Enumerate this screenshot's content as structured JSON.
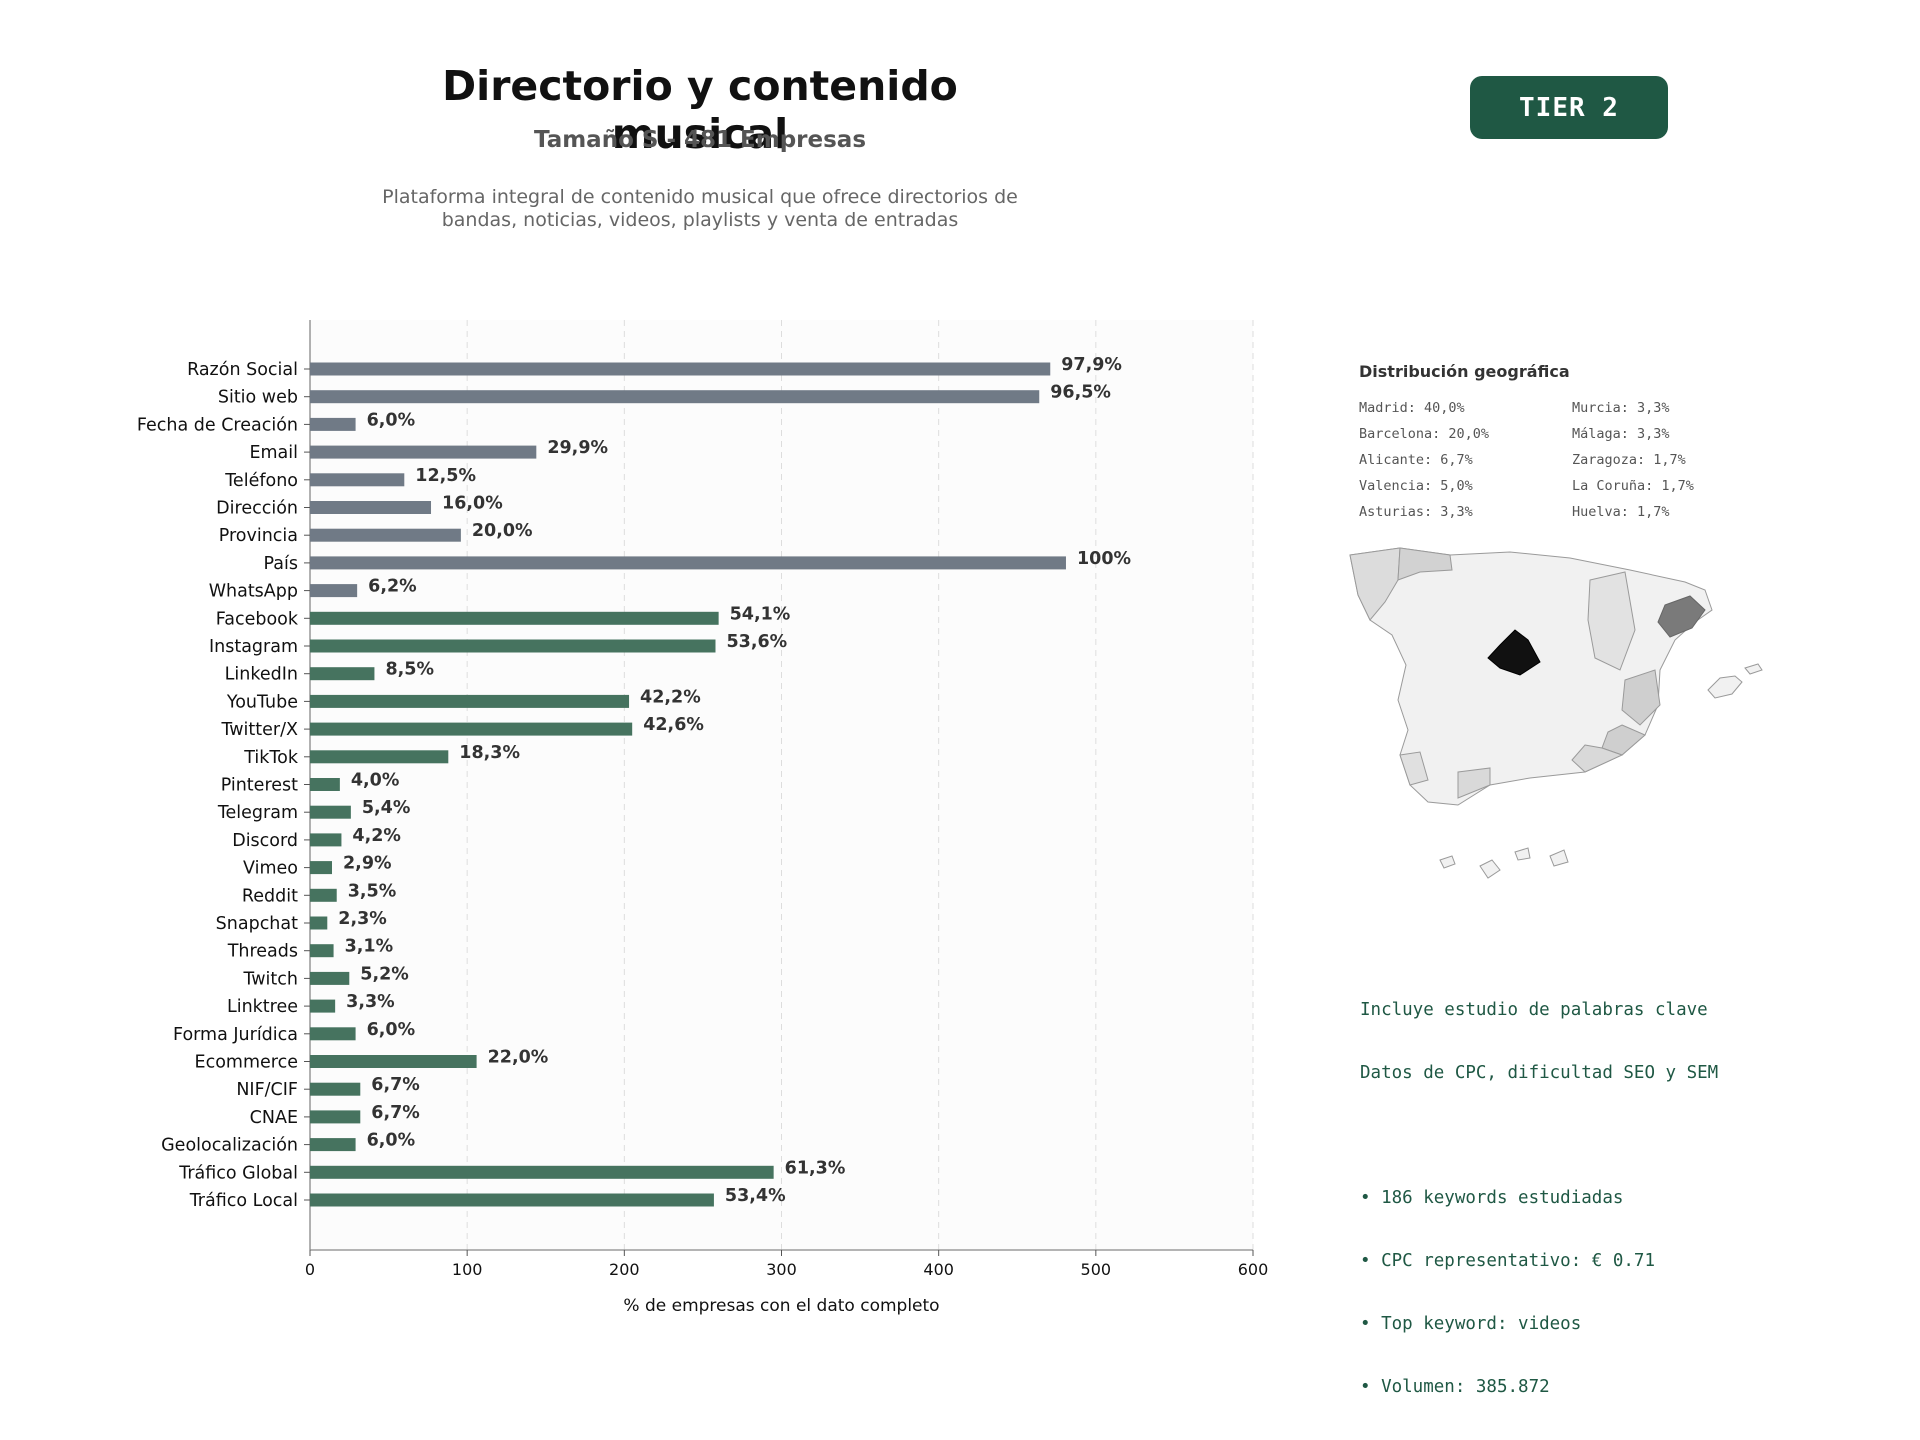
{
  "header": {
    "title": "Directorio y contenido musical",
    "subtitle": "Tamaño S - 481 Empresas",
    "description_line1": "Plataforma integral de contenido musical que ofrece directorios de",
    "description_line2": "bandas, noticias, videos, playlists y venta de entradas",
    "tier_label": "TIER 2"
  },
  "colors": {
    "grey_bar": "#707a86",
    "green_bar": "#46735f",
    "accent": "#1f5844",
    "madrid": "#111111",
    "barcelona": "#7a7a7a",
    "valencia_alicante": "#cfcfcf",
    "other_region": "#f1f1f1"
  },
  "chart_data": {
    "type": "bar",
    "orientation": "horizontal",
    "xlabel": "% de empresas con el dato completo",
    "xlim": [
      0,
      600
    ],
    "xticks": [
      0,
      100,
      200,
      300,
      400,
      500,
      600
    ],
    "grid": "vertical-dashed",
    "categories": [
      "Razón Social",
      "Sitio web",
      "Fecha de Creación",
      "Email",
      "Teléfono",
      "Dirección",
      "Provincia",
      "País",
      "WhatsApp",
      "Facebook",
      "Instagram",
      "LinkedIn",
      "YouTube",
      "Twitter/X",
      "TikTok",
      "Pinterest",
      "Telegram",
      "Discord",
      "Vimeo",
      "Reddit",
      "Snapchat",
      "Threads",
      "Twitch",
      "Linktree",
      "Forma Jurídica",
      "Ecommerce",
      "NIF/CIF",
      "CNAE",
      "Geolocalización",
      "Tráfico Global",
      "Tráfico Local"
    ],
    "values": [
      471,
      464,
      29,
      144,
      60,
      77,
      96,
      481,
      30,
      260,
      258,
      41,
      203,
      205,
      88,
      19,
      26,
      20,
      14,
      17,
      11,
      15,
      25,
      16,
      29,
      106,
      32,
      32,
      29,
      295,
      257
    ],
    "labels": [
      "97,9%",
      "96,5%",
      "6,0%",
      "29,9%",
      "12,5%",
      "16,0%",
      "20,0%",
      "100%",
      "6,2%",
      "54,1%",
      "53,6%",
      "8,5%",
      "42,2%",
      "42,6%",
      "18,3%",
      "4,0%",
      "5,4%",
      "4,2%",
      "2,9%",
      "3,5%",
      "2,3%",
      "3,1%",
      "5,2%",
      "3,3%",
      "6,0%",
      "22,0%",
      "6,7%",
      "6,7%",
      "6,0%",
      "61,3%",
      "53,4%"
    ],
    "bar_color_group": [
      "grey",
      "grey",
      "grey",
      "grey",
      "grey",
      "grey",
      "grey",
      "grey",
      "grey",
      "green",
      "green",
      "green",
      "green",
      "green",
      "green",
      "green",
      "green",
      "green",
      "green",
      "green",
      "green",
      "green",
      "green",
      "green",
      "green",
      "green",
      "green",
      "green",
      "green",
      "green",
      "green"
    ]
  },
  "geo": {
    "title": "Distribución geográfica",
    "left_column": [
      "Madrid: 40,0%",
      "Barcelona: 20,0%",
      "Alicante: 6,7%",
      "Valencia: 5,0%",
      "Asturias: 3,3%"
    ],
    "right_column": [
      "Murcia: 3,3%",
      "Málaga: 3,3%",
      "Zaragoza: 1,7%",
      "La Coruña: 1,7%",
      "Huelva: 1,7%"
    ]
  },
  "seo": {
    "line1": "Incluye estudio de palabras clave",
    "line2": "Datos de CPC, dificultad SEO y SEM",
    "bullet1": "• 186 keywords estudiadas",
    "bullet2": "• CPC representativo: € 0.71",
    "bullet3": "• Top keyword: videos",
    "bullet4": "• Volumen: 385.872"
  }
}
